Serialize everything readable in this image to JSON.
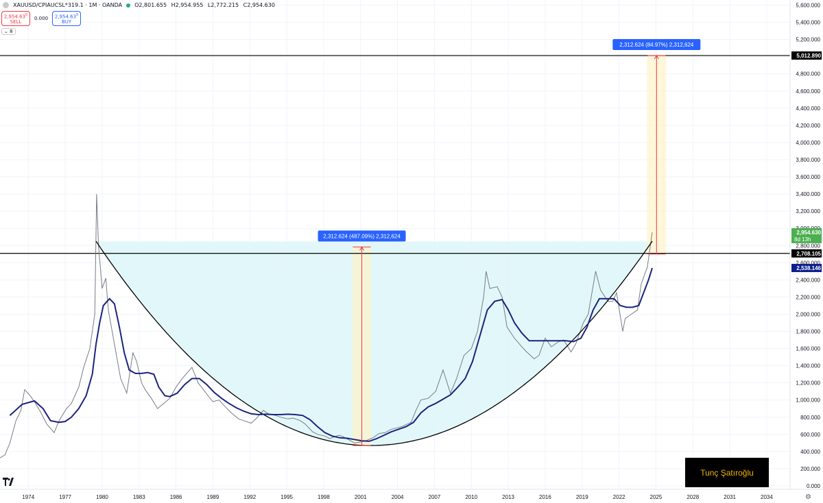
{
  "header": {
    "symbol": "XAUUSD/CPIAUCSL*319.1 · 1M · OANDA",
    "open": "O2,801.655",
    "high": "H2,954.955",
    "low": "L2,772.215",
    "close": "C2,954.630"
  },
  "trading": {
    "sell_price": "2,954.63",
    "sell_sup": "0",
    "sell_label": "SELL",
    "spread": "0.000",
    "buy_price": "2,954.63",
    "buy_sup": "0",
    "buy_label": "BUY",
    "lots": "8"
  },
  "author": "Tunç Şatıroğlu",
  "colors": {
    "ma_line": "#1a237e",
    "cup_fill": "#dff6f8",
    "measure_line": "#f23645",
    "measure_label_bg": "#2962ff",
    "last_price_badge": "#4caf50",
    "ma_badge": "#0d1f8c"
  },
  "chart_data": {
    "type": "line",
    "symbol": "XAUUSD/CPIAUCSL*319.1",
    "timeframe": "1M",
    "x_ticks": [
      "1974",
      "1977",
      "1980",
      "1983",
      "1986",
      "1989",
      "1992",
      "1995",
      "1998",
      "2001",
      "2004",
      "2007",
      "2010",
      "2013",
      "2016",
      "2019",
      "2022",
      "2025",
      "2028",
      "2031",
      "2034"
    ],
    "y_ticks": [
      "0.000",
      "200.000",
      "400.000",
      "600.000",
      "800.000",
      "1,000.000",
      "1,200.000",
      "1,400.000",
      "1,600.000",
      "1,800.000",
      "2,000.000",
      "2,200.000",
      "2,400.000",
      "2,600.000",
      "2,800.000",
      "3,000.000",
      "3,200.000",
      "3,400.000",
      "3,600.000",
      "3,800.000",
      "4,000.000",
      "4,200.000",
      "4,400.000",
      "4,600.000",
      "4,800.000",
      "5,000.000",
      "5,200.000",
      "5,400.000",
      "5,600.000"
    ],
    "xlim": [
      1972.2,
      2036.4
    ],
    "ylim": [
      -40,
      5660
    ],
    "series": [
      {
        "values": [
          [
            1972.0,
            310
          ],
          [
            1972.6,
            360
          ],
          [
            1973.0,
            500
          ],
          [
            1973.5,
            760
          ],
          [
            1973.9,
            880
          ],
          [
            1974.2,
            1120
          ],
          [
            1974.6,
            1060
          ],
          [
            1975.0,
            980
          ],
          [
            1975.5,
            860
          ],
          [
            1976.0,
            720
          ],
          [
            1976.6,
            620
          ],
          [
            1977.0,
            760
          ],
          [
            1977.6,
            900
          ],
          [
            1978.0,
            960
          ],
          [
            1978.6,
            1150
          ],
          [
            1979.0,
            1380
          ],
          [
            1979.5,
            1600
          ],
          [
            1979.9,
            2000
          ],
          [
            1980.05,
            3400
          ],
          [
            1980.2,
            2800
          ],
          [
            1980.5,
            2300
          ],
          [
            1980.8,
            2420
          ],
          [
            1981.0,
            2050
          ],
          [
            1981.5,
            1650
          ],
          [
            1982.0,
            1250
          ],
          [
            1982.5,
            1080
          ],
          [
            1983.0,
            1550
          ],
          [
            1983.3,
            1450
          ],
          [
            1983.7,
            1200
          ],
          [
            1984.0,
            1120
          ],
          [
            1984.5,
            1020
          ],
          [
            1985.0,
            900
          ],
          [
            1985.5,
            960
          ],
          [
            1986.0,
            1020
          ],
          [
            1986.5,
            1150
          ],
          [
            1987.0,
            1250
          ],
          [
            1987.8,
            1380
          ],
          [
            1988.3,
            1200
          ],
          [
            1989.0,
            1070
          ],
          [
            1989.5,
            980
          ],
          [
            1990.0,
            1000
          ],
          [
            1990.5,
            920
          ],
          [
            1991.0,
            850
          ],
          [
            1991.6,
            780
          ],
          [
            1992.0,
            760
          ],
          [
            1992.6,
            730
          ],
          [
            1993.0,
            780
          ],
          [
            1993.6,
            880
          ],
          [
            1994.0,
            840
          ],
          [
            1994.6,
            820
          ],
          [
            1995.0,
            800
          ],
          [
            1995.6,
            780
          ],
          [
            1996.0,
            790
          ],
          [
            1996.6,
            760
          ],
          [
            1997.0,
            720
          ],
          [
            1997.6,
            630
          ],
          [
            1998.0,
            600
          ],
          [
            1998.6,
            580
          ],
          [
            1999.0,
            550
          ],
          [
            1999.7,
            590
          ],
          [
            2000.0,
            580
          ],
          [
            2000.5,
            540
          ],
          [
            2001.0,
            500
          ],
          [
            2001.5,
            510
          ],
          [
            2002.0,
            530
          ],
          [
            2002.5,
            560
          ],
          [
            2003.0,
            610
          ],
          [
            2003.5,
            620
          ],
          [
            2004.0,
            660
          ],
          [
            2004.6,
            680
          ],
          [
            2005.0,
            700
          ],
          [
            2005.6,
            740
          ],
          [
            2006.0,
            880
          ],
          [
            2006.4,
            1000
          ],
          [
            2007.0,
            1020
          ],
          [
            2007.6,
            1100
          ],
          [
            2008.2,
            1350
          ],
          [
            2008.8,
            1080
          ],
          [
            2009.3,
            1250
          ],
          [
            2009.9,
            1520
          ],
          [
            2010.5,
            1600
          ],
          [
            2011.0,
            1800
          ],
          [
            2011.5,
            2200
          ],
          [
            2011.7,
            2500
          ],
          [
            2012.0,
            2300
          ],
          [
            2012.6,
            2320
          ],
          [
            2013.0,
            2200
          ],
          [
            2013.4,
            1850
          ],
          [
            2014.0,
            1720
          ],
          [
            2014.6,
            1620
          ],
          [
            2015.0,
            1560
          ],
          [
            2015.6,
            1480
          ],
          [
            2016.0,
            1520
          ],
          [
            2016.5,
            1720
          ],
          [
            2017.0,
            1620
          ],
          [
            2017.6,
            1680
          ],
          [
            2018.0,
            1700
          ],
          [
            2018.6,
            1560
          ],
          [
            2019.0,
            1660
          ],
          [
            2019.6,
            1900
          ],
          [
            2020.0,
            2000
          ],
          [
            2020.6,
            2500
          ],
          [
            2021.0,
            2280
          ],
          [
            2021.6,
            2150
          ],
          [
            2022.0,
            2150
          ],
          [
            2022.3,
            2250
          ],
          [
            2022.8,
            1800
          ],
          [
            2023.0,
            1950
          ],
          [
            2023.5,
            2000
          ],
          [
            2024.0,
            2050
          ],
          [
            2024.3,
            2350
          ],
          [
            2024.8,
            2550
          ],
          [
            2025.05,
            2800
          ],
          [
            2025.2,
            2954.63
          ]
        ],
        "color": "#787b86"
      },
      {
        "values": [
          [
            1973.0,
            820
          ],
          [
            1974.0,
            950
          ],
          [
            1975.0,
            990
          ],
          [
            1975.7,
            900
          ],
          [
            1976.3,
            760
          ],
          [
            1977.0,
            740
          ],
          [
            1977.5,
            750
          ],
          [
            1978.0,
            800
          ],
          [
            1978.6,
            900
          ],
          [
            1979.2,
            1050
          ],
          [
            1979.7,
            1300
          ],
          [
            1980.0,
            1650
          ],
          [
            1980.3,
            1900
          ],
          [
            1980.6,
            2100
          ],
          [
            1981.1,
            2180
          ],
          [
            1981.5,
            2120
          ],
          [
            1981.9,
            1850
          ],
          [
            1982.3,
            1550
          ],
          [
            1982.7,
            1350
          ],
          [
            1983.2,
            1310
          ],
          [
            1983.7,
            1310
          ],
          [
            1984.2,
            1320
          ],
          [
            1984.7,
            1300
          ],
          [
            1985.1,
            1150
          ],
          [
            1985.6,
            1050
          ],
          [
            1986.0,
            1040
          ],
          [
            1986.6,
            1080
          ],
          [
            1987.2,
            1180
          ],
          [
            1987.8,
            1250
          ],
          [
            1988.4,
            1250
          ],
          [
            1989.0,
            1180
          ],
          [
            1989.6,
            1090
          ],
          [
            1990.2,
            1020
          ],
          [
            1990.8,
            960
          ],
          [
            1991.4,
            910
          ],
          [
            1992.0,
            870
          ],
          [
            1992.6,
            840
          ],
          [
            1993.2,
            830
          ],
          [
            1993.8,
            835
          ],
          [
            1994.4,
            830
          ],
          [
            1995.0,
            830
          ],
          [
            1995.6,
            835
          ],
          [
            1996.2,
            830
          ],
          [
            1996.8,
            820
          ],
          [
            1997.4,
            770
          ],
          [
            1998.0,
            690
          ],
          [
            1998.6,
            620
          ],
          [
            1999.2,
            580
          ],
          [
            1999.8,
            560
          ],
          [
            2000.4,
            555
          ],
          [
            2001.0,
            540
          ],
          [
            2001.6,
            525
          ],
          [
            2002.2,
            520
          ],
          [
            2002.8,
            550
          ],
          [
            2003.4,
            590
          ],
          [
            2004.0,
            630
          ],
          [
            2004.6,
            660
          ],
          [
            2005.2,
            690
          ],
          [
            2005.8,
            740
          ],
          [
            2006.4,
            850
          ],
          [
            2007.0,
            920
          ],
          [
            2007.6,
            960
          ],
          [
            2008.2,
            1010
          ],
          [
            2008.8,
            1060
          ],
          [
            2009.4,
            1150
          ],
          [
            2010.0,
            1250
          ],
          [
            2010.6,
            1450
          ],
          [
            2011.2,
            1750
          ],
          [
            2011.8,
            2050
          ],
          [
            2012.4,
            2150
          ],
          [
            2013.0,
            2170
          ],
          [
            2013.5,
            2050
          ],
          [
            2014.0,
            1900
          ],
          [
            2014.6,
            1780
          ],
          [
            2015.2,
            1690
          ],
          [
            2015.8,
            1690
          ],
          [
            2016.4,
            1690
          ],
          [
            2017.0,
            1690
          ],
          [
            2017.6,
            1690
          ],
          [
            2018.2,
            1690
          ],
          [
            2018.8,
            1680
          ],
          [
            2019.4,
            1720
          ],
          [
            2019.9,
            1850
          ],
          [
            2020.4,
            2050
          ],
          [
            2020.9,
            2180
          ],
          [
            2021.5,
            2180
          ],
          [
            2022.1,
            2180
          ],
          [
            2022.6,
            2100
          ],
          [
            2023.1,
            2080
          ],
          [
            2023.6,
            2080
          ],
          [
            2024.1,
            2100
          ],
          [
            2024.5,
            2250
          ],
          [
            2024.9,
            2400
          ],
          [
            2025.2,
            2538.146
          ]
        ],
        "color": "#1a237e"
      }
    ],
    "horizontal_lines": [
      {
        "value": 5012.89,
        "label": "5,012.890"
      },
      {
        "value": 2708.105,
        "label": "2,708.105"
      }
    ],
    "price_badges": [
      {
        "value": 2954.63,
        "label": "2,954.630",
        "countdown": "8d 13h"
      },
      {
        "value": 2538.146,
        "label": "2,538.146"
      }
    ],
    "measurements": [
      {
        "x": 2001.6,
        "from": 470,
        "to": 2782.6,
        "label": "2,312.624 (487.09%) 2,312,624"
      },
      {
        "x": 2025.55,
        "from": 2700.3,
        "to": 5012.9,
        "label": "2,312.624 (84.97%) 2,312,624"
      }
    ],
    "cup": {
      "x_start": 1980.0,
      "x_end": 2025.2,
      "rim": 2850,
      "bottom": 470
    }
  }
}
